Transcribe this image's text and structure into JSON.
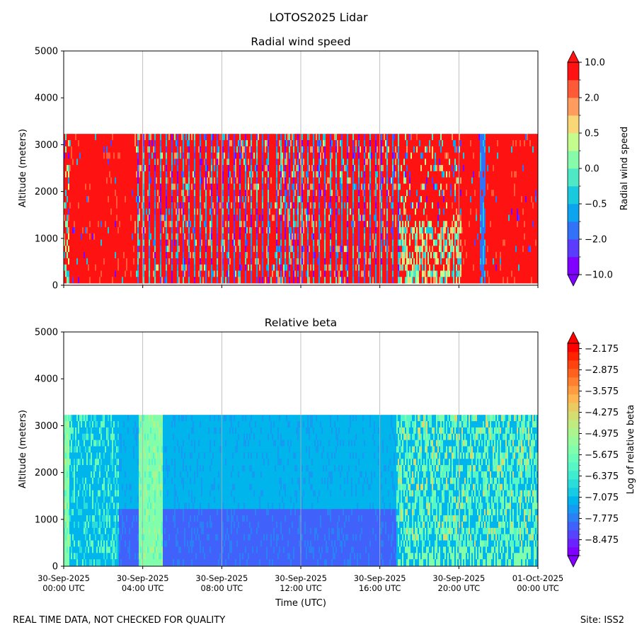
{
  "figure": {
    "title": "LOTOS2025 Lidar",
    "footer_left": "REAL TIME DATA, NOT CHECKED FOR QUALITY",
    "footer_right": "Site: ISS2"
  },
  "chart_data": [
    {
      "type": "heatmap",
      "title": "Radial wind speed",
      "xlabel": "",
      "ylabel": "Altitude (meters)",
      "ylim": [
        0,
        5000
      ],
      "yticks": [
        0,
        1000,
        2000,
        3000,
        4000,
        5000
      ],
      "xticks": [
        {
          "date": "30-Sep-2025",
          "time": "00:00 UTC",
          "hour": 0
        },
        {
          "date": "30-Sep-2025",
          "time": "04:00 UTC",
          "hour": 4
        },
        {
          "date": "30-Sep-2025",
          "time": "08:00 UTC",
          "hour": 8
        },
        {
          "date": "30-Sep-2025",
          "time": "12:00 UTC",
          "hour": 12
        },
        {
          "date": "30-Sep-2025",
          "time": "16:00 UTC",
          "hour": 16
        },
        {
          "date": "30-Sep-2025",
          "time": "20:00 UTC",
          "hour": 20
        },
        {
          "date": "01-Oct-2025",
          "time": "00:00 UTC",
          "hour": 24
        }
      ],
      "show_xtick_labels": false,
      "data_top_altitude": 3230,
      "data_bottom_altitude": 45,
      "grid": "vertical",
      "colorbar": {
        "label": "Radial wind speed",
        "tick_labels": [
          "10.0",
          "2.0",
          "0.5",
          "0.0",
          "−0.5",
          "−2.0",
          "−10.0"
        ],
        "colors": [
          "#7f00ff",
          "#5b3cfe",
          "#3272f8",
          "#0ca4ee",
          "#19c9dd",
          "#4ee8c6",
          "#86fbaa",
          "#c4fc8d",
          "#f9d776",
          "#ff9c5e",
          "#ff5a37",
          "#ff1212"
        ]
      },
      "bands": [
        {
          "start": 0.0,
          "end": 0.8,
          "regime": "mixed"
        },
        {
          "start": 0.3,
          "end": 3.55,
          "regime": "red"
        },
        {
          "start": 3.55,
          "end": 17.0,
          "regime": "striped"
        },
        {
          "start": 10.6,
          "end": 12.2,
          "regime": "striped-dense"
        },
        {
          "start": 17.0,
          "end": 20.1,
          "regime": "mixed"
        },
        {
          "start": 20.1,
          "end": 21.05,
          "regime": "red"
        },
        {
          "start": 21.05,
          "end": 21.35,
          "regime": "blue"
        },
        {
          "start": 21.35,
          "end": 24.0,
          "regime": "red"
        }
      ]
    },
    {
      "type": "heatmap",
      "title": "Relative beta",
      "xlabel": "Time (UTC)",
      "ylabel": "Altitude (meters)",
      "ylim": [
        0,
        5000
      ],
      "yticks": [
        0,
        1000,
        2000,
        3000,
        4000,
        5000
      ],
      "xticks": [
        {
          "date": "30-Sep-2025",
          "time": "00:00 UTC",
          "hour": 0
        },
        {
          "date": "30-Sep-2025",
          "time": "04:00 UTC",
          "hour": 4
        },
        {
          "date": "30-Sep-2025",
          "time": "08:00 UTC",
          "hour": 8
        },
        {
          "date": "30-Sep-2025",
          "time": "12:00 UTC",
          "hour": 12
        },
        {
          "date": "30-Sep-2025",
          "time": "16:00 UTC",
          "hour": 16
        },
        {
          "date": "30-Sep-2025",
          "time": "20:00 UTC",
          "hour": 20
        },
        {
          "date": "01-Oct-2025",
          "time": "00:00 UTC",
          "hour": 24
        }
      ],
      "show_xtick_labels": true,
      "data_top_altitude": 3230,
      "data_bottom_altitude": 15,
      "grid": "vertical",
      "colorbar": {
        "label": "Log of relative beta",
        "tick_labels": [
          "−2.175",
          "−2.875",
          "−3.575",
          "−4.275",
          "−4.975",
          "−5.675",
          "−6.375",
          "−7.075",
          "−7.775",
          "−8.475"
        ],
        "tick_values": [
          -2.175,
          -2.875,
          -3.575,
          -4.275,
          -4.975,
          -5.675,
          -6.375,
          -7.075,
          -7.775,
          -8.475
        ],
        "vmin": -9.0,
        "vmax": -2.0,
        "colors": [
          "#7f00ff",
          "#6a22fe",
          "#5543fd",
          "#4062fa",
          "#2b80f6",
          "#169bf2",
          "#00b5eb",
          "#16cbe3",
          "#2adddb",
          "#40ecd0",
          "#56f6c6",
          "#6afdb9",
          "#80feab",
          "#96fb9d",
          "#aaf58e",
          "#c0eb80",
          "#d4dd70",
          "#eacb61",
          "#ffb551",
          "#ff9b40",
          "#ff8030",
          "#ff621f",
          "#ff430f",
          "#ff2200",
          "#ff0000"
        ]
      },
      "bands": [
        {
          "start": 0.0,
          "end": 0.3,
          "regime": "green"
        },
        {
          "start": 0.3,
          "end": 2.8,
          "regime": "teal-mixed"
        },
        {
          "start": 2.8,
          "end": 3.8,
          "regime": "blue"
        },
        {
          "start": 3.8,
          "end": 5.0,
          "regime": "green-bright"
        },
        {
          "start": 5.0,
          "end": 16.8,
          "regime": "blue"
        },
        {
          "start": 16.8,
          "end": 24.0,
          "regime": "mixed-green"
        }
      ]
    }
  ]
}
